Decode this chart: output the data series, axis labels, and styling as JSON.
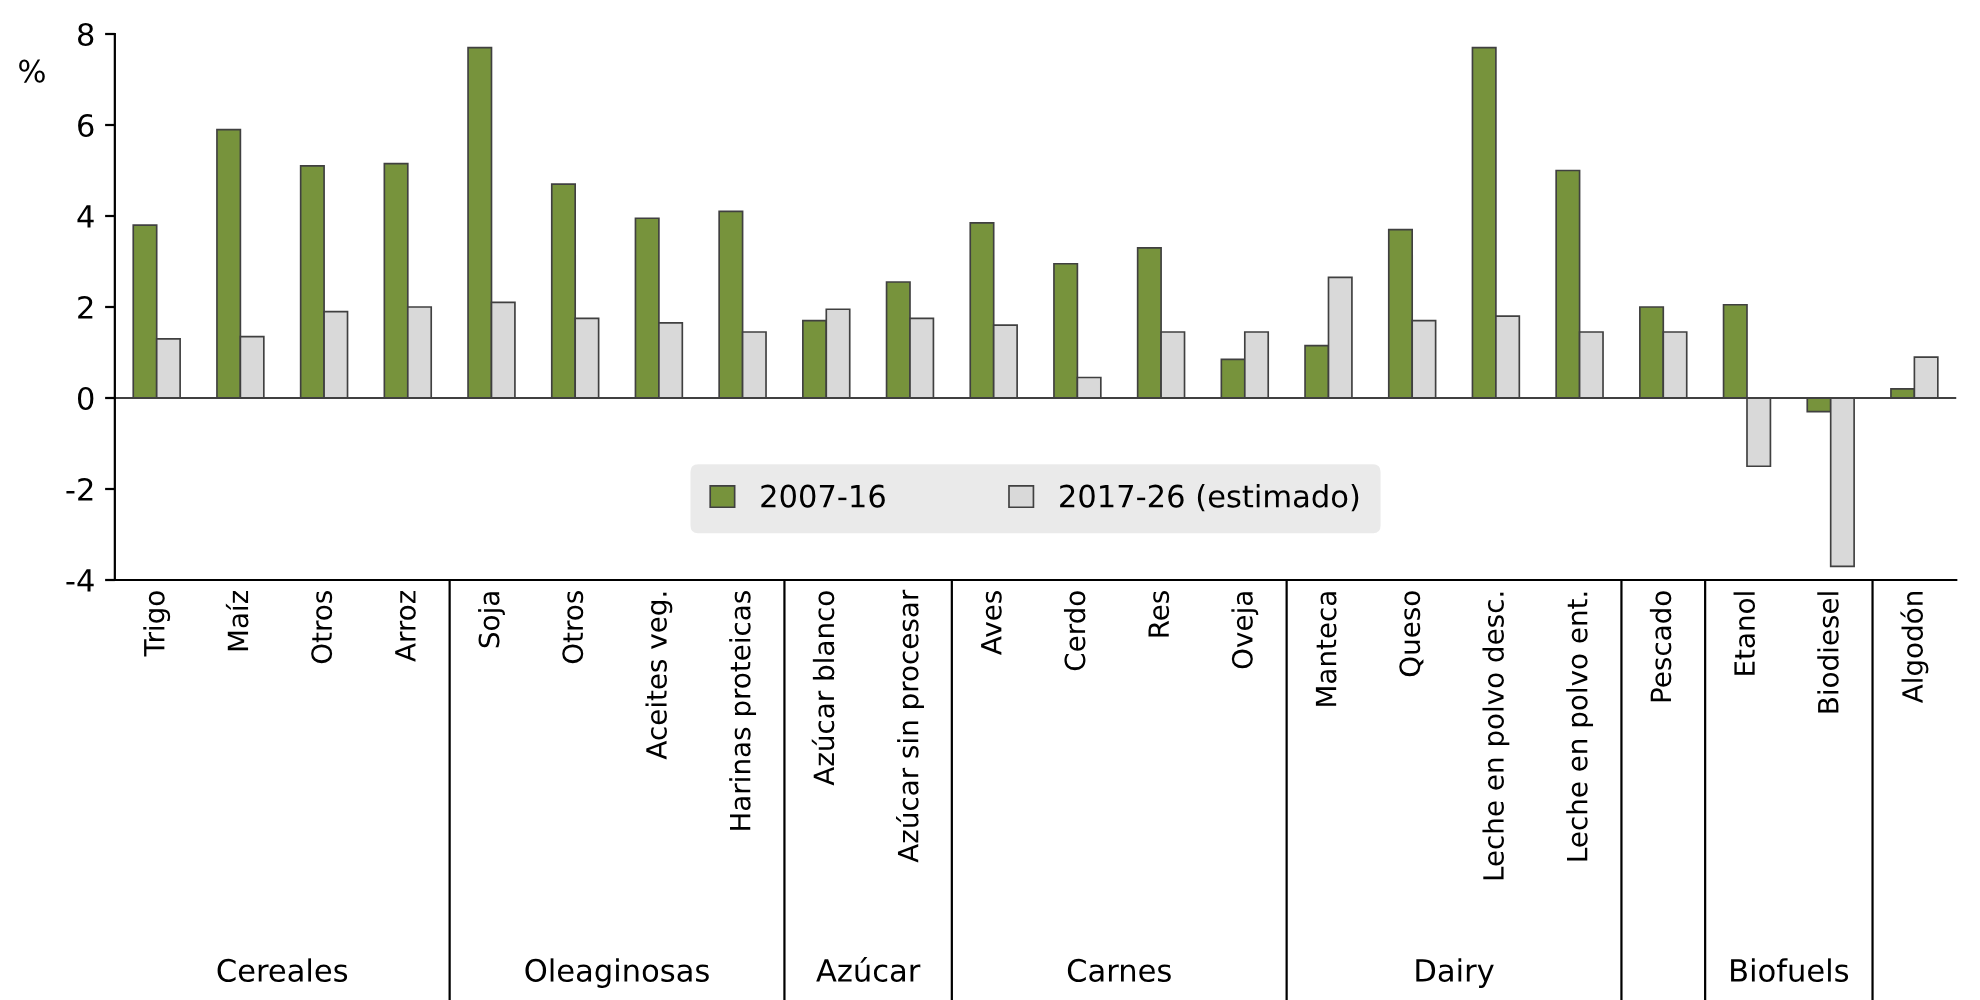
{
  "chart_data": {
    "type": "bar",
    "ylabel": "%",
    "categories": [
      "Trigo",
      "Maíz",
      "Otros",
      "Arroz",
      "Soja",
      "Otros",
      "Aceites veg.",
      "Harinas proteicas",
      "Azúcar blanco",
      "Azúcar sin procesar",
      "Aves",
      "Cerdo",
      "Res",
      "Oveja",
      "Manteca",
      "Queso",
      "Leche en polvo desc.",
      "Leche en polvo ent.",
      "Pescado",
      "Etanol",
      "Biodiesel",
      "Algodón"
    ],
    "series": [
      {
        "name": "2007-16",
        "color": "#77933c",
        "values": [
          3.8,
          5.9,
          5.1,
          5.15,
          7.7,
          4.7,
          3.95,
          4.1,
          1.7,
          2.55,
          3.85,
          2.95,
          3.3,
          0.85,
          1.15,
          3.7,
          7.7,
          5.0,
          2.0,
          2.05,
          -0.3,
          0.2
        ]
      },
      {
        "name": "2017-26 (estimado)",
        "color": "#d9d9d9",
        "values": [
          1.3,
          1.35,
          1.9,
          2.0,
          2.1,
          1.75,
          1.65,
          1.45,
          1.95,
          1.75,
          1.6,
          0.45,
          1.45,
          1.45,
          2.65,
          1.7,
          1.8,
          1.45,
          1.45,
          -1.5,
          -3.7,
          0.9
        ]
      }
    ],
    "ylim": [
      -4,
      8
    ],
    "yticks": [
      -4,
      -2,
      0,
      2,
      4,
      6,
      8
    ],
    "legend": "bottom",
    "ref_lines": [
      {
        "axis": "y",
        "value": 0
      }
    ],
    "annotations": [
      "Cereales",
      "Oleaginosas",
      "Azúcar",
      "Carnes",
      "Dairy",
      "Biofuels"
    ]
  }
}
